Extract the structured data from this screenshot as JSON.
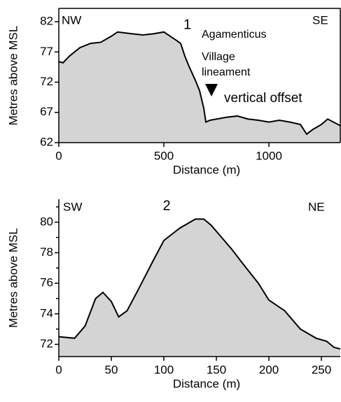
{
  "chart_data": [
    {
      "type": "area",
      "xlabel": "Distance (m)",
      "ylabel": "Metres above MSL",
      "annotations": [
        "NW",
        "SE",
        "1",
        "Agamenticus",
        "Village",
        "lineament",
        "vertical offset"
      ],
      "x": [
        0,
        20,
        50,
        100,
        150,
        200,
        250,
        280,
        350,
        400,
        450,
        500,
        530,
        560,
        580,
        600,
        620,
        650,
        670,
        690,
        700,
        720,
        800,
        850,
        900,
        950,
        1000,
        1050,
        1100,
        1150,
        1180,
        1210,
        1250,
        1280,
        1340
      ],
      "values": [
        75.4,
        75.2,
        76.3,
        77.7,
        78.4,
        78.6,
        79.6,
        80.3,
        80.0,
        79.8,
        80.0,
        80.3,
        79.6,
        78.9,
        78.4,
        76.3,
        74.6,
        72.3,
        70.6,
        67.7,
        65.4,
        65.7,
        66.2,
        66.4,
        65.9,
        65.7,
        65.4,
        65.7,
        65.4,
        65.0,
        63.4,
        64.2,
        65.0,
        65.9,
        64.8
      ],
      "color": "#d4d4d4",
      "xlim": [
        0,
        1340
      ],
      "ylim": [
        62,
        84.2
      ],
      "xticks": [
        0,
        500,
        1000
      ],
      "yticks": [
        62,
        67,
        72,
        77,
        82
      ],
      "grid": false
    },
    {
      "type": "area",
      "xlabel": "Distance (m)",
      "ylabel": "Metres above MSL",
      "annotations": [
        "SW",
        "2",
        "NE"
      ],
      "x": [
        0,
        15,
        25,
        35,
        42,
        50,
        57,
        65,
        75,
        90,
        100,
        115,
        130,
        138,
        145,
        155,
        165,
        175,
        190,
        200,
        215,
        230,
        245,
        255,
        262,
        268
      ],
      "values": [
        72.5,
        72.4,
        73.2,
        75.0,
        75.4,
        74.8,
        73.8,
        74.2,
        75.5,
        77.5,
        78.8,
        79.6,
        80.2,
        80.2,
        79.8,
        79.0,
        78.2,
        77.3,
        76.0,
        74.9,
        74.2,
        73.0,
        72.4,
        72.2,
        71.8,
        71.7
      ],
      "color": "#d4d4d4",
      "xlim": [
        0,
        268
      ],
      "ylim": [
        71.2,
        81.5
      ],
      "xticks": [
        0,
        50,
        100,
        150,
        200,
        250
      ],
      "yticks": [
        72,
        74,
        76,
        78,
        80
      ],
      "yminorticks": [
        73,
        75,
        77,
        79,
        81
      ],
      "grid": false
    }
  ]
}
